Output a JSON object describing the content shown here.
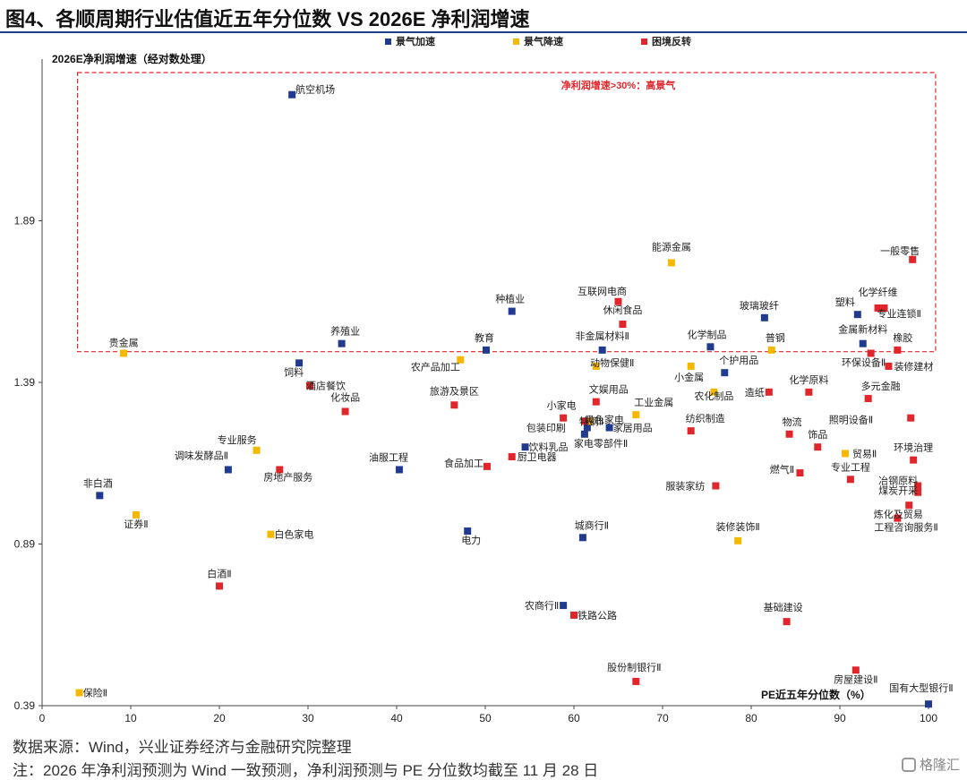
{
  "title": "图4、各顺周期行业估值近五年分位数  VS 2026E 净利润增速",
  "source": "数据来源：Wind，兴业证券经济与金融研究院整理",
  "note": "注：2026 年净利润预测为 Wind 一致预测，净利润预测与 PE 分位数均截至 11 月 28 日",
  "logo_text": "格隆汇",
  "chart_data": {
    "type": "scatter",
    "xlabel": "PE近五年分位数（%）",
    "ylabel": "2026E净利润增速（经对数处理）",
    "xlim": [
      0,
      100
    ],
    "ylim": [
      0.39,
      2.39
    ],
    "x_ticks": [
      0,
      10,
      20,
      30,
      40,
      50,
      60,
      70,
      80,
      90,
      100
    ],
    "y_ticks": [
      0.39,
      0.89,
      1.39,
      1.89
    ],
    "y_tick_labels": [
      "0.39",
      "0.89",
      "1.39",
      "1.89"
    ],
    "colors": {
      "景气加速": "#1f3a8f",
      "景气降速": "#f5b800",
      "困境反转": "#e0262a"
    },
    "legend": {
      "position": "top-center"
    },
    "threshold_box": {
      "label": "净利润增速>30%：高景气",
      "y_min": 1.485,
      "color": "#e0262a"
    },
    "series": [
      {
        "name": "景气加速",
        "points": [
          {
            "label": "航空机场",
            "x": 28.2,
            "y": 2.28
          },
          {
            "label": "种植业",
            "x": 53.0,
            "y": 1.61
          },
          {
            "label": "玻璃玻纤",
            "x": 81.5,
            "y": 1.59
          },
          {
            "label": "塑料",
            "x": 92.0,
            "y": 1.6
          },
          {
            "label": "养殖业",
            "x": 33.8,
            "y": 1.51
          },
          {
            "label": "教育",
            "x": 50.1,
            "y": 1.49
          },
          {
            "label": "非金属材料Ⅱ",
            "x": 63.2,
            "y": 1.49
          },
          {
            "label": "化学制品",
            "x": 75.4,
            "y": 1.5
          },
          {
            "label": "金属新材料",
            "x": 92.6,
            "y": 1.51
          },
          {
            "label": "饲料",
            "x": 29.0,
            "y": 1.45
          },
          {
            "label": "个护用品",
            "x": 77.0,
            "y": 1.42
          },
          {
            "label": "包装印刷",
            "x": 61.5,
            "y": 1.25
          },
          {
            "label": "家居用品",
            "x": 64.0,
            "y": 1.25
          },
          {
            "label": "家电零部件Ⅱ",
            "x": 61.2,
            "y": 1.23
          },
          {
            "label": "饮料乳品",
            "x": 54.5,
            "y": 1.19
          },
          {
            "label": "调味发酵品Ⅱ",
            "x": 21.0,
            "y": 1.12
          },
          {
            "label": "油服工程",
            "x": 40.3,
            "y": 1.12
          },
          {
            "label": "非白酒",
            "x": 6.5,
            "y": 1.04
          },
          {
            "label": "电力",
            "x": 48.0,
            "y": 0.93
          },
          {
            "label": "城商行Ⅱ",
            "x": 61.0,
            "y": 0.91
          },
          {
            "label": "农商行Ⅱ",
            "x": 58.8,
            "y": 0.7
          },
          {
            "label": "国有大型银行Ⅱ",
            "x": 100.0,
            "y": 0.395
          }
        ]
      },
      {
        "name": "景气降速",
        "points": [
          {
            "label": "能源金属",
            "x": 71.0,
            "y": 1.76
          },
          {
            "label": "普钢",
            "x": 82.3,
            "y": 1.49
          },
          {
            "label": "贵金属",
            "x": 9.2,
            "y": 1.48
          },
          {
            "label": "农产品加工",
            "x": 47.2,
            "y": 1.46
          },
          {
            "label": "动物保健Ⅱ",
            "x": 62.5,
            "y": 1.44
          },
          {
            "label": "小金属",
            "x": 73.2,
            "y": 1.44
          },
          {
            "label": "农化制品",
            "x": 75.8,
            "y": 1.36
          },
          {
            "label": "工业金属",
            "x": 67.0,
            "y": 1.29
          },
          {
            "label": "特钢Ⅱ",
            "x": 61.8,
            "y": 1.27
          },
          {
            "label": "专业服务",
            "x": 24.2,
            "y": 1.18
          },
          {
            "label": "贸易Ⅱ",
            "x": 90.6,
            "y": 1.17
          },
          {
            "label": "证券Ⅱ",
            "x": 10.6,
            "y": 0.98
          },
          {
            "label": "白色家电",
            "x": 25.8,
            "y": 0.92
          },
          {
            "label": "装修装饰Ⅱ",
            "x": 78.5,
            "y": 0.9
          },
          {
            "label": "保险Ⅱ",
            "x": 4.2,
            "y": 0.43
          }
        ]
      },
      {
        "name": "困境反转",
        "points": [
          {
            "label": "一般零售",
            "x": 98.2,
            "y": 1.77
          },
          {
            "label": "互联网电商",
            "x": 65.0,
            "y": 1.64
          },
          {
            "label": "化学纤维",
            "x": 94.3,
            "y": 1.62
          },
          {
            "label": "专业连锁Ⅱ",
            "x": 95.0,
            "y": 1.62
          },
          {
            "label": "休闲食品",
            "x": 65.5,
            "y": 1.57
          },
          {
            "label": "橡胶",
            "x": 96.5,
            "y": 1.49
          },
          {
            "label": "环保设备Ⅱ",
            "x": 93.5,
            "y": 1.48
          },
          {
            "label": "装修建材",
            "x": 95.5,
            "y": 1.44
          },
          {
            "label": "酒店餐饮",
            "x": 30.2,
            "y": 1.38
          },
          {
            "label": "造纸",
            "x": 82.0,
            "y": 1.36
          },
          {
            "label": "化学原料",
            "x": 86.5,
            "y": 1.36
          },
          {
            "label": "多元金融",
            "x": 93.2,
            "y": 1.34
          },
          {
            "label": "化妆品",
            "x": 34.2,
            "y": 1.3
          },
          {
            "label": "旅游及景区",
            "x": 46.5,
            "y": 1.32
          },
          {
            "label": "文娱用品",
            "x": 62.5,
            "y": 1.33
          },
          {
            "label": "小家电",
            "x": 58.8,
            "y": 1.28
          },
          {
            "label": "黑色家电",
            "x": 61.2,
            "y": 1.27
          },
          {
            "label": "照明设备Ⅱ",
            "x": 98.0,
            "y": 1.28
          },
          {
            "label": "纺织制造",
            "x": 73.2,
            "y": 1.24
          },
          {
            "label": "物流",
            "x": 84.3,
            "y": 1.23
          },
          {
            "label": "饰品",
            "x": 87.5,
            "y": 1.19
          },
          {
            "label": "厨卫电器",
            "x": 53.0,
            "y": 1.16
          },
          {
            "label": "环境治理",
            "x": 98.3,
            "y": 1.15
          },
          {
            "label": "食品加工",
            "x": 50.2,
            "y": 1.13
          },
          {
            "label": "燃气Ⅱ",
            "x": 85.5,
            "y": 1.11
          },
          {
            "label": "房地产服务",
            "x": 26.8,
            "y": 1.12
          },
          {
            "label": "专业工程",
            "x": 91.2,
            "y": 1.09
          },
          {
            "label": "服装家纺",
            "x": 76.0,
            "y": 1.07
          },
          {
            "label": "冶钢原料",
            "x": 98.8,
            "y": 1.07
          },
          {
            "label": "煤炭开采",
            "x": 98.8,
            "y": 1.05
          },
          {
            "label": "炼化及贸易",
            "x": 97.8,
            "y": 1.01
          },
          {
            "label": "工程咨询服务Ⅱ",
            "x": 96.5,
            "y": 0.97
          },
          {
            "label": "白酒Ⅱ",
            "x": 20.0,
            "y": 0.76
          },
          {
            "label": "铁路公路",
            "x": 60.0,
            "y": 0.67
          },
          {
            "label": "基础建设",
            "x": 84.0,
            "y": 0.65
          },
          {
            "label": "房屋建设Ⅱ",
            "x": 91.8,
            "y": 0.5
          },
          {
            "label": "股份制银行Ⅱ",
            "x": 67.0,
            "y": 0.465
          }
        ]
      }
    ]
  }
}
